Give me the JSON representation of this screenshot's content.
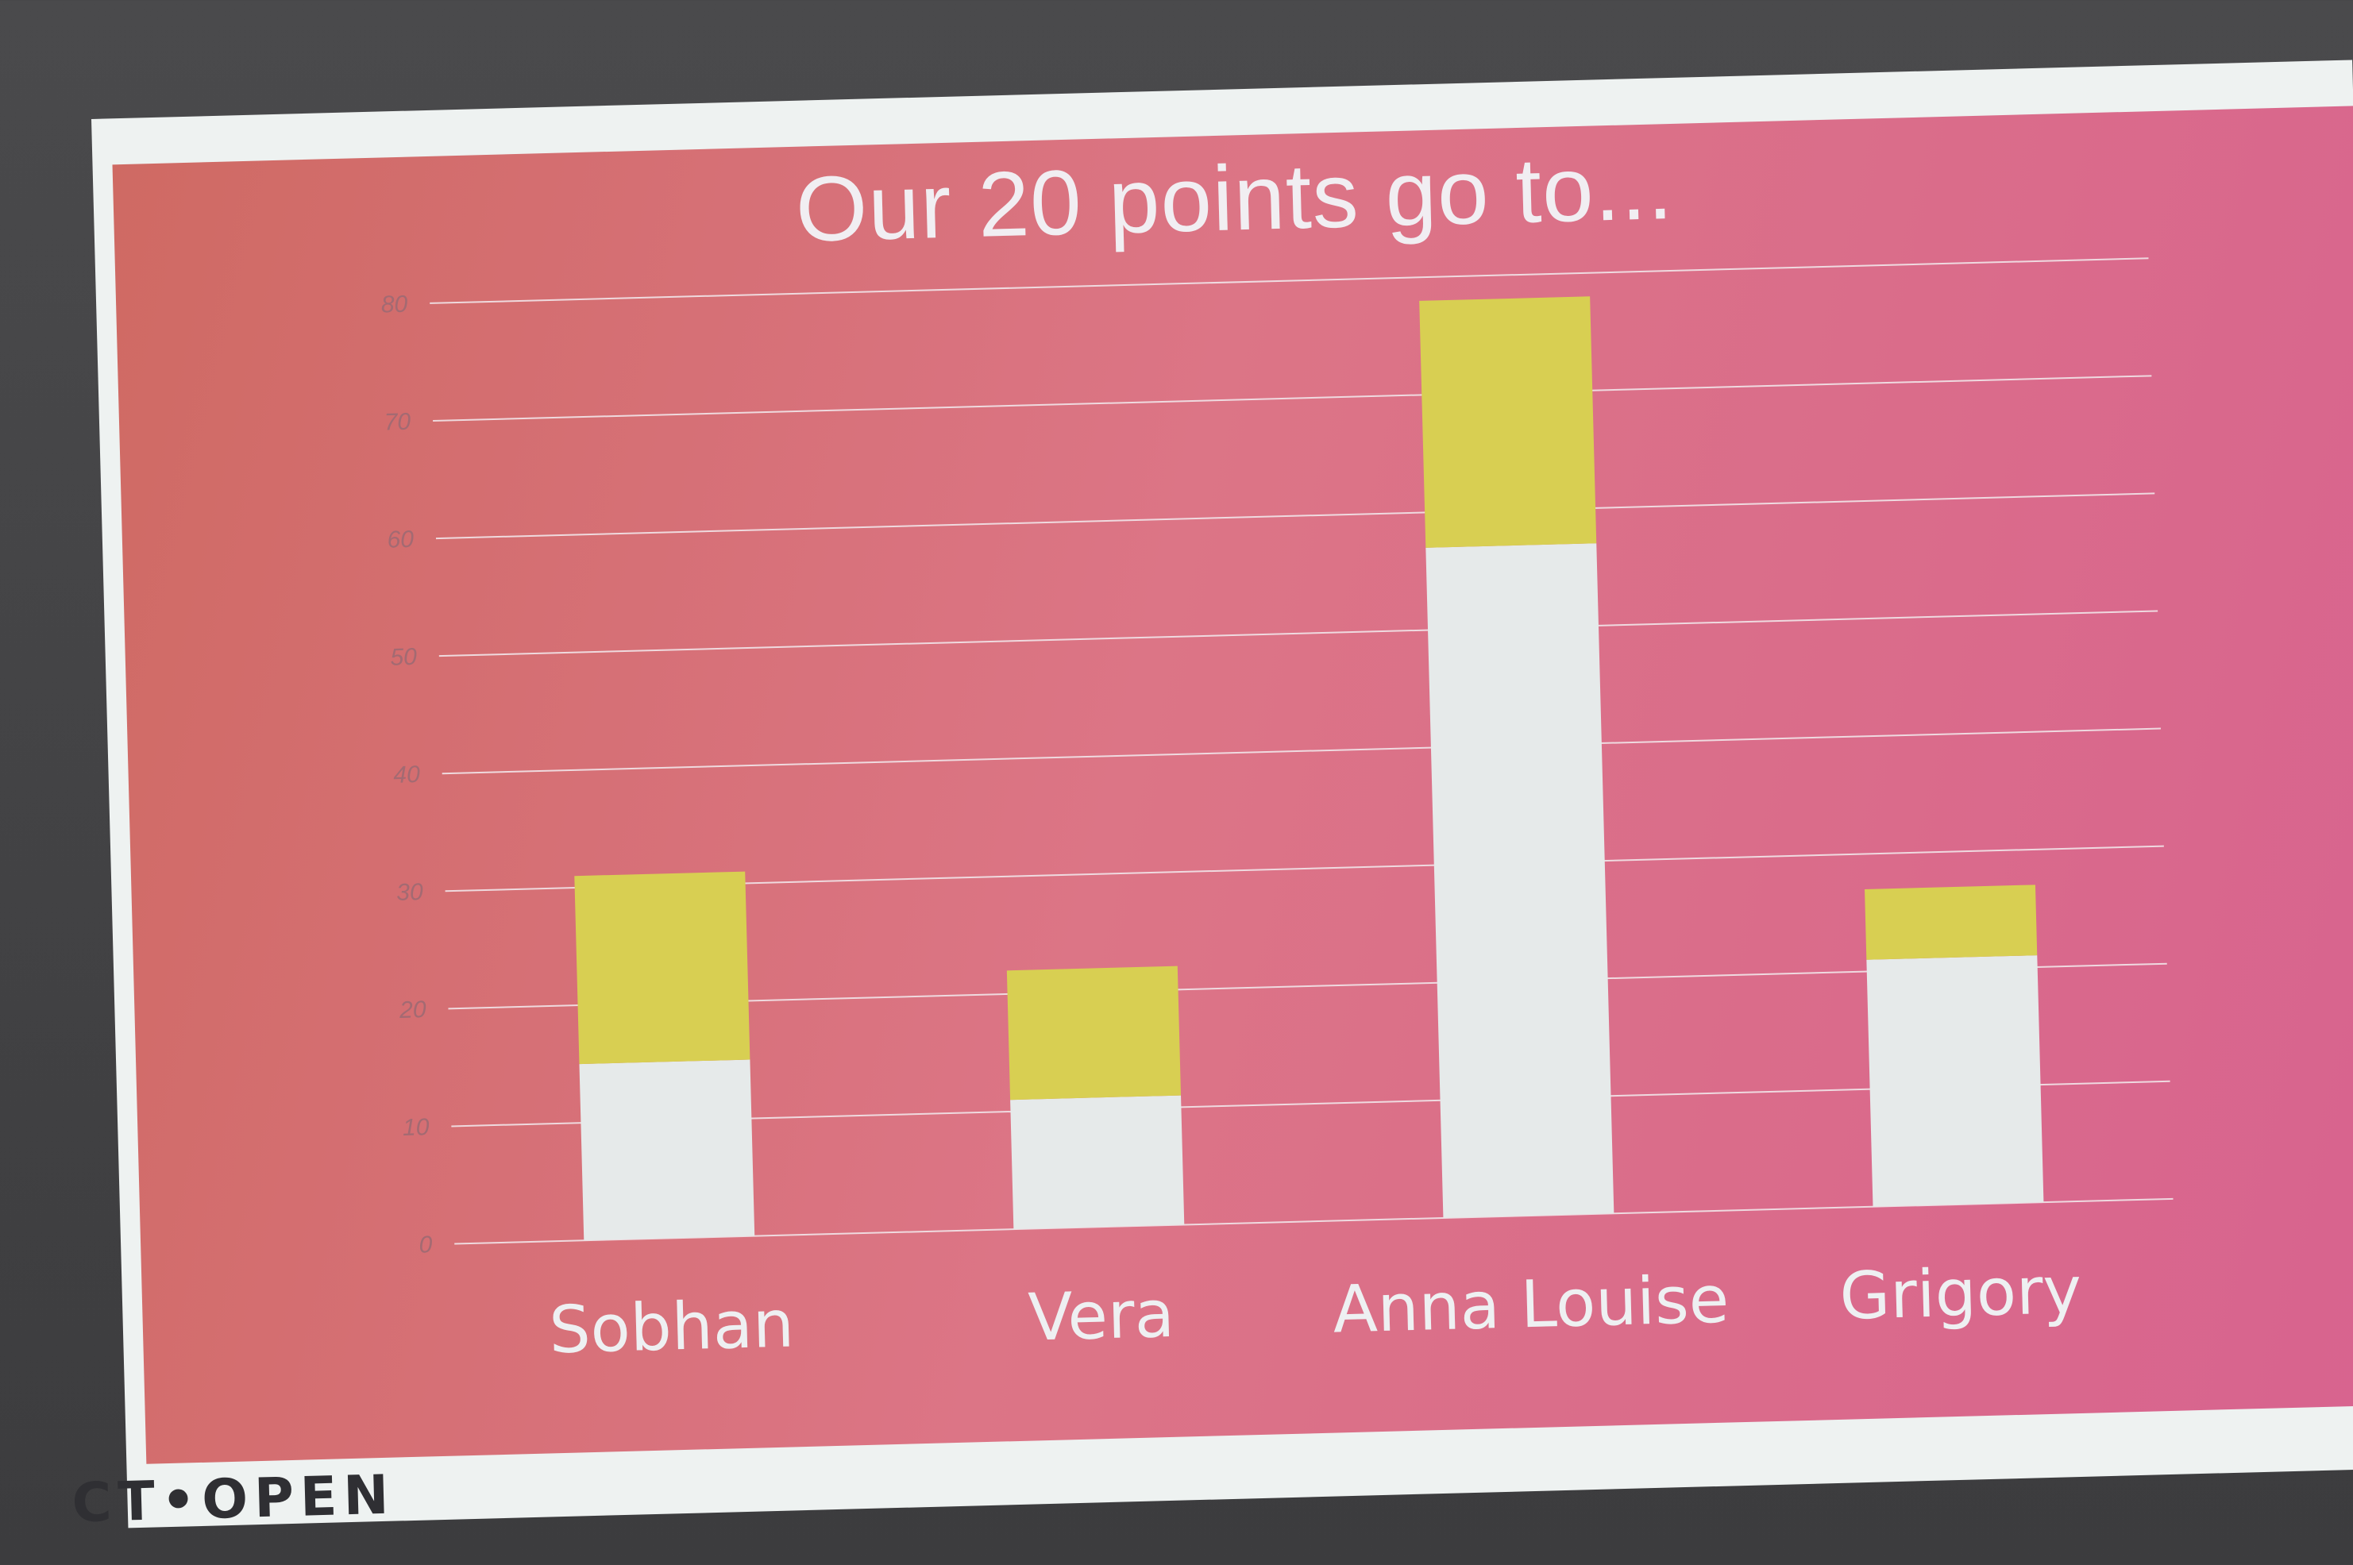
{
  "slide": {
    "title": "Our 20 points go to...",
    "logo_text": "CT•OPEN"
  },
  "colors": {
    "base": "#e6eaea",
    "top": "#d8cf52",
    "grid": "#f2e6ea",
    "tick": "#a36a72",
    "category": "#eef0f2"
  },
  "chart_data": {
    "type": "bar",
    "stacked": true,
    "categories": [
      "Sobhan",
      "Vera",
      "Anna Louise",
      "Grigory"
    ],
    "series": [
      {
        "values": [
          15,
          11,
          57,
          21
        ]
      },
      {
        "values": [
          16,
          11,
          21,
          6
        ]
      }
    ],
    "ylim": [
      0,
      80
    ],
    "yticks": [
      0,
      10,
      20,
      30,
      40,
      50,
      60,
      70,
      80
    ],
    "grid": true,
    "legend": "none"
  }
}
